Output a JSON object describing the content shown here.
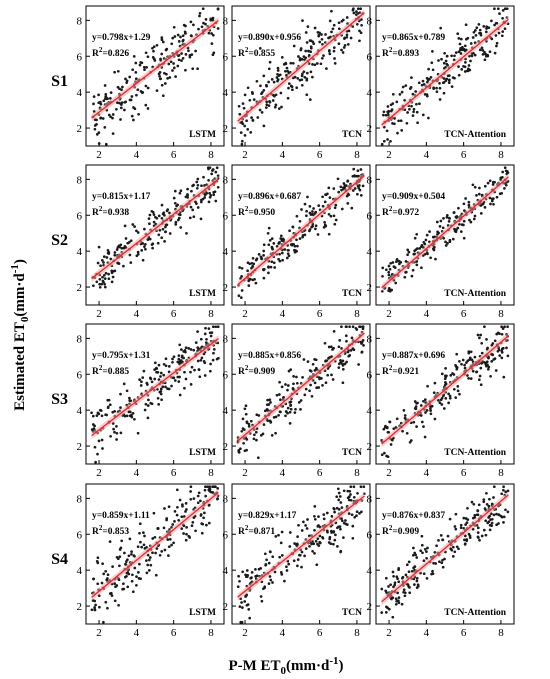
{
  "chart_data": {
    "type": "scatter",
    "xlabel": "P-M ET",
    "xlabel_sub": "0",
    "xlabel_unit": "(mm·d",
    "xlabel_sup": "-1",
    "xlabel_close": ")",
    "ylabel": "Estimated ET",
    "ylabel_sub": "0",
    "ylabel_unit": "(mm·d",
    "ylabel_sup": "-1",
    "ylabel_close": ")",
    "xlim": [
      1.3,
      8.7
    ],
    "ylim": [
      1.0,
      8.8
    ],
    "xticks": [
      2,
      4,
      6,
      8
    ],
    "yticks": [
      2,
      4,
      6,
      8
    ],
    "fit_color": "#e8262a",
    "band_color": "#f3a5a7",
    "point_color": "#1a1a1a",
    "rows": [
      "S1",
      "S2",
      "S3",
      "S4"
    ],
    "models": [
      "LSTM",
      "TCN",
      "TCN-Attention"
    ],
    "panels": [
      {
        "row": "S1",
        "model": "LSTM",
        "equation": "y=0.798x+1.29",
        "r2_label": "R",
        "r2_sup": "2",
        "r2_value": "=0.826",
        "slope": 0.798,
        "intercept": 1.29,
        "r2": 0.826
      },
      {
        "row": "S1",
        "model": "TCN",
        "equation": "y=0.890x+0.956",
        "r2_label": "R",
        "r2_sup": "2",
        "r2_value": "=0.855",
        "slope": 0.89,
        "intercept": 0.956,
        "r2": 0.855
      },
      {
        "row": "S1",
        "model": "TCN-Attention",
        "equation": "y=0.865x+0.789",
        "r2_label": "R",
        "r2_sup": "2",
        "r2_value": "=0.893",
        "slope": 0.865,
        "intercept": 0.789,
        "r2": 0.893
      },
      {
        "row": "S2",
        "model": "LSTM",
        "equation": "y=0.815x+1.17",
        "r2_label": "R",
        "r2_sup": "2",
        "r2_value": "=0.938",
        "slope": 0.815,
        "intercept": 1.17,
        "r2": 0.938
      },
      {
        "row": "S2",
        "model": "TCN",
        "equation": "y=0.896x+0.687",
        "r2_label": "R",
        "r2_sup": "2",
        "r2_value": "=0.950",
        "slope": 0.896,
        "intercept": 0.687,
        "r2": 0.95
      },
      {
        "row": "S2",
        "model": "TCN-Attention",
        "equation": "y=0.909x+0.504",
        "r2_label": "R",
        "r2_sup": "2",
        "r2_value": "=0.972",
        "slope": 0.909,
        "intercept": 0.504,
        "r2": 0.972
      },
      {
        "row": "S3",
        "model": "LSTM",
        "equation": "y=0.795x+1.31",
        "r2_label": "R",
        "r2_sup": "2",
        "r2_value": "=0.885",
        "slope": 0.795,
        "intercept": 1.31,
        "r2": 0.885
      },
      {
        "row": "S3",
        "model": "TCN",
        "equation": "y=0.885x+0.856",
        "r2_label": "R",
        "r2_sup": "2",
        "r2_value": "=0.909",
        "slope": 0.885,
        "intercept": 0.856,
        "r2": 0.909
      },
      {
        "row": "S3",
        "model": "TCN-Attention",
        "equation": "y=0.887x+0.696",
        "r2_label": "R",
        "r2_sup": "2",
        "r2_value": "=0.921",
        "slope": 0.887,
        "intercept": 0.696,
        "r2": 0.921
      },
      {
        "row": "S4",
        "model": "LSTM",
        "equation": "y=0.859x+1.11",
        "r2_label": "R",
        "r2_sup": "2",
        "r2_value": "=0.853",
        "slope": 0.859,
        "intercept": 1.11,
        "r2": 0.853
      },
      {
        "row": "S4",
        "model": "TCN",
        "equation": "y=0.829x+1.17",
        "r2_label": "R",
        "r2_sup": "2",
        "r2_value": "=0.871",
        "slope": 0.829,
        "intercept": 1.17,
        "r2": 0.871
      },
      {
        "row": "S4",
        "model": "TCN-Attention",
        "equation": "y=0.876x+0.837",
        "r2_label": "R",
        "r2_sup": "2",
        "r2_value": "=0.909",
        "slope": 0.876,
        "intercept": 0.837,
        "r2": 0.909
      }
    ]
  }
}
